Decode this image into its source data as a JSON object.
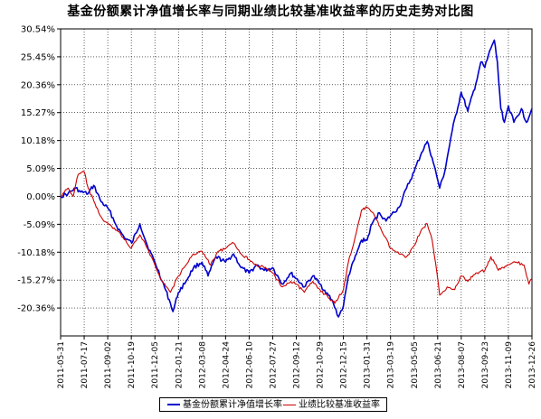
{
  "chart_data": {
    "type": "line",
    "title": "基金份额累计净值增长率与同期业绩比较基准收益率的历史走势对比图",
    "ylim": [
      -25.45,
      30.54
    ],
    "yticks": [
      "30.54%",
      "25.45%",
      "20.36%",
      "15.27%",
      "10.18%",
      "5.09%",
      "0.00%",
      "-5.09%",
      "-10.18%",
      "-15.27%",
      "-20.36%"
    ],
    "ytick_values": [
      30.54,
      25.45,
      20.36,
      15.27,
      10.18,
      5.09,
      0.0,
      -5.09,
      -10.18,
      -15.27,
      -20.36
    ],
    "x_range": [
      "2011-05-31",
      "2013-12-26"
    ],
    "xticks": [
      "2011-05-31",
      "2011-07-17",
      "2011-09-02",
      "2011-10-19",
      "2011-12-05",
      "2012-01-21",
      "2012-03-08",
      "2012-04-24",
      "2012-06-10",
      "2012-07-27",
      "2012-09-12",
      "2012-10-29",
      "2012-12-15",
      "2013-01-31",
      "2013-03-19",
      "2013-05-05",
      "2013-06-21",
      "2013-08-07",
      "2013-09-23",
      "2013-11-09",
      "2013-12-26"
    ],
    "grid": true,
    "legend_position": "bottom",
    "series": [
      {
        "name": "基金份额累计净值增长率",
        "color": "#0000cc",
        "points": [
          [
            "2011-05-31",
            0.0
          ],
          [
            "2011-06-15",
            0.5
          ],
          [
            "2011-06-30",
            1.5
          ],
          [
            "2011-07-10",
            0.8
          ],
          [
            "2011-07-25",
            0.5
          ],
          [
            "2011-08-05",
            2.0
          ],
          [
            "2011-08-20",
            -1.0
          ],
          [
            "2011-09-05",
            -2.5
          ],
          [
            "2011-09-20",
            -5.5
          ],
          [
            "2011-10-05",
            -7.5
          ],
          [
            "2011-10-20",
            -8.5
          ],
          [
            "2011-11-05",
            -5.0
          ],
          [
            "2011-11-20",
            -9.0
          ],
          [
            "2011-12-05",
            -12.0
          ],
          [
            "2011-12-20",
            -15.5
          ],
          [
            "2012-01-05",
            -19.5
          ],
          [
            "2012-01-10",
            -21.0
          ],
          [
            "2012-01-21",
            -17.5
          ],
          [
            "2012-02-05",
            -15.5
          ],
          [
            "2012-02-20",
            -13.0
          ],
          [
            "2012-03-08",
            -12.0
          ],
          [
            "2012-03-20",
            -14.5
          ],
          [
            "2012-04-05",
            -11.0
          ],
          [
            "2012-04-24",
            -12.0
          ],
          [
            "2012-05-10",
            -10.5
          ],
          [
            "2012-05-25",
            -13.0
          ],
          [
            "2012-06-10",
            -14.0
          ],
          [
            "2012-06-25",
            -12.5
          ],
          [
            "2012-07-10",
            -13.5
          ],
          [
            "2012-07-27",
            -13.0
          ],
          [
            "2012-08-15",
            -16.0
          ],
          [
            "2012-09-01",
            -14.0
          ],
          [
            "2012-09-12",
            -15.0
          ],
          [
            "2012-09-28",
            -16.5
          ],
          [
            "2012-10-15",
            -14.5
          ],
          [
            "2012-10-29",
            -16.0
          ],
          [
            "2012-11-15",
            -18.0
          ],
          [
            "2012-11-25",
            -19.5
          ],
          [
            "2012-12-05",
            -22.0
          ],
          [
            "2012-12-15",
            -20.0
          ],
          [
            "2012-12-25",
            -14.5
          ],
          [
            "2013-01-10",
            -10.5
          ],
          [
            "2013-01-20",
            -8.0
          ],
          [
            "2013-01-31",
            -8.0
          ],
          [
            "2013-02-10",
            -5.0
          ],
          [
            "2013-02-25",
            -3.0
          ],
          [
            "2013-03-10",
            -4.5
          ],
          [
            "2013-03-19",
            -3.5
          ],
          [
            "2013-04-05",
            -2.0
          ],
          [
            "2013-04-20",
            1.5
          ],
          [
            "2013-05-05",
            4.5
          ],
          [
            "2013-05-20",
            8.0
          ],
          [
            "2013-05-31",
            10.0
          ],
          [
            "2013-06-10",
            7.0
          ],
          [
            "2013-06-21",
            3.0
          ],
          [
            "2013-06-25",
            1.5
          ],
          [
            "2013-07-05",
            4.5
          ],
          [
            "2013-07-20",
            12.0
          ],
          [
            "2013-08-07",
            19.0
          ],
          [
            "2013-08-20",
            15.5
          ],
          [
            "2013-09-05",
            20.5
          ],
          [
            "2013-09-15",
            24.5
          ],
          [
            "2013-09-23",
            23.5
          ],
          [
            "2013-10-05",
            27.0
          ],
          [
            "2013-10-12",
            28.5
          ],
          [
            "2013-10-18",
            24.5
          ],
          [
            "2013-10-25",
            16.0
          ],
          [
            "2013-11-01",
            13.5
          ],
          [
            "2013-11-09",
            16.5
          ],
          [
            "2013-11-20",
            13.5
          ],
          [
            "2013-12-05",
            16.0
          ],
          [
            "2013-12-15",
            13.5
          ],
          [
            "2013-12-26",
            16.0
          ]
        ]
      },
      {
        "name": "业绩比较基准收益率",
        "color": "#cc0000",
        "points": [
          [
            "2011-05-31",
            0.0
          ],
          [
            "2011-06-15",
            1.5
          ],
          [
            "2011-06-25",
            0.0
          ],
          [
            "2011-07-05",
            4.0
          ],
          [
            "2011-07-17",
            4.5
          ],
          [
            "2011-07-25",
            1.5
          ],
          [
            "2011-08-10",
            -2.0
          ],
          [
            "2011-08-25",
            -4.5
          ],
          [
            "2011-09-10",
            -5.5
          ],
          [
            "2011-09-25",
            -6.5
          ],
          [
            "2011-10-10",
            -8.5
          ],
          [
            "2011-10-19",
            -9.5
          ],
          [
            "2011-11-05",
            -7.0
          ],
          [
            "2011-11-20",
            -9.5
          ],
          [
            "2011-12-05",
            -12.5
          ],
          [
            "2011-12-20",
            -15.5
          ],
          [
            "2012-01-05",
            -17.5
          ],
          [
            "2012-01-21",
            -14.5
          ],
          [
            "2012-02-05",
            -12.5
          ],
          [
            "2012-02-20",
            -10.5
          ],
          [
            "2012-03-08",
            -10.0
          ],
          [
            "2012-03-25",
            -12.5
          ],
          [
            "2012-04-10",
            -10.0
          ],
          [
            "2012-04-24",
            -9.5
          ],
          [
            "2012-05-10",
            -8.5
          ],
          [
            "2012-05-25",
            -10.5
          ],
          [
            "2012-06-10",
            -11.5
          ],
          [
            "2012-06-25",
            -12.5
          ],
          [
            "2012-07-10",
            -13.0
          ],
          [
            "2012-07-27",
            -14.0
          ],
          [
            "2012-08-15",
            -16.5
          ],
          [
            "2012-09-01",
            -15.5
          ],
          [
            "2012-09-12",
            -16.0
          ],
          [
            "2012-09-28",
            -17.5
          ],
          [
            "2012-10-15",
            -15.5
          ],
          [
            "2012-10-29",
            -17.0
          ],
          [
            "2012-11-15",
            -18.5
          ],
          [
            "2012-11-28",
            -19.5
          ],
          [
            "2012-12-05",
            -18.5
          ],
          [
            "2012-12-15",
            -17.0
          ],
          [
            "2012-12-25",
            -12.0
          ],
          [
            "2013-01-10",
            -6.5
          ],
          [
            "2013-01-20",
            -2.5
          ],
          [
            "2013-01-31",
            -2.0
          ],
          [
            "2013-02-15",
            -3.5
          ],
          [
            "2013-02-28",
            -6.0
          ],
          [
            "2013-03-19",
            -9.5
          ],
          [
            "2013-04-05",
            -10.5
          ],
          [
            "2013-04-20",
            -11.0
          ],
          [
            "2013-05-05",
            -9.0
          ],
          [
            "2013-05-20",
            -6.0
          ],
          [
            "2013-05-31",
            -5.0
          ],
          [
            "2013-06-10",
            -8.0
          ],
          [
            "2013-06-21",
            -15.0
          ],
          [
            "2013-06-25",
            -18.0
          ],
          [
            "2013-07-10",
            -16.5
          ],
          [
            "2013-07-25",
            -17.0
          ],
          [
            "2013-08-07",
            -14.5
          ],
          [
            "2013-08-20",
            -15.5
          ],
          [
            "2013-09-05",
            -14.0
          ],
          [
            "2013-09-23",
            -13.5
          ],
          [
            "2013-10-05",
            -11.0
          ],
          [
            "2013-10-20",
            -13.5
          ],
          [
            "2013-11-09",
            -12.5
          ],
          [
            "2013-11-25",
            -12.0
          ],
          [
            "2013-12-10",
            -12.5
          ],
          [
            "2013-12-20",
            -16.0
          ],
          [
            "2013-12-26",
            -15.0
          ]
        ]
      }
    ]
  }
}
